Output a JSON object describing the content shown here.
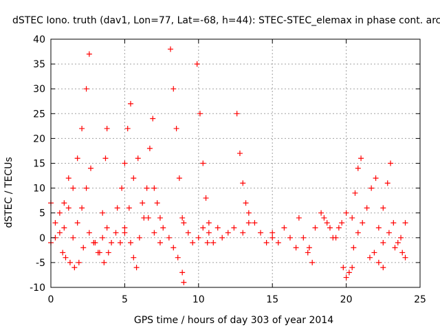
{
  "chart_data": {
    "type": "scatter",
    "title": "dSTEC Iono. truth (dav1, Lon=77, Lat=-68, h=44): STEC-STEC_elemax in phase cont. arc",
    "xlabel": "GPS time / hours of day 303 of year 2014",
    "ylabel": "dSTEC  / TECUs",
    "xlim": [
      0,
      25
    ],
    "ylim": [
      -10,
      40
    ],
    "x_ticks": [
      "0",
      "5",
      "10",
      "15",
      "20",
      "25"
    ],
    "y_ticks": [
      "-10",
      "-5",
      "0",
      "5",
      "10",
      "15",
      "20",
      "25",
      "30",
      "35",
      "40"
    ],
    "grid": true,
    "marker": "+",
    "series_color": "#ff0000",
    "series": [
      {
        "x": [
          0.0,
          0.3,
          0.6,
          0.9,
          1.2,
          1.5,
          1.8,
          2.1,
          2.4,
          2.6
        ],
        "y": [
          7,
          3,
          5,
          2,
          6,
          10,
          16,
          22,
          30,
          37
        ]
      },
      {
        "x": [
          0.0,
          0.3,
          0.6,
          0.9,
          1.2
        ],
        "y": [
          -1,
          0,
          1,
          7,
          12
        ]
      },
      {
        "x": [
          0.8,
          1.0,
          1.3,
          1.6,
          1.9,
          2.2
        ],
        "y": [
          -3,
          -4,
          -5,
          -6,
          -5,
          -2
        ]
      },
      {
        "x": [
          1.5,
          1.8,
          2.1,
          2.4,
          2.7
        ],
        "y": [
          0,
          3,
          6,
          10,
          14
        ]
      },
      {
        "x": [
          2.6,
          2.9,
          3.2,
          3.5,
          3.7,
          3.8
        ],
        "y": [
          1,
          -1,
          -3,
          5,
          16,
          22
        ]
      },
      {
        "x": [
          3.0,
          3.3,
          3.6,
          3.9
        ],
        "y": [
          -1,
          -3,
          -5,
          -3
        ]
      },
      {
        "x": [
          3.5,
          3.8,
          4.1,
          4.4,
          4.7,
          5.0
        ],
        "y": [
          0,
          2,
          -1,
          1,
          -1,
          1
        ]
      },
      {
        "x": [
          4.5,
          4.8,
          5.0,
          5.2,
          5.4
        ],
        "y": [
          6,
          10,
          15,
          22,
          27
        ]
      },
      {
        "x": [
          5.0,
          5.3,
          5.6,
          5.9
        ],
        "y": [
          2,
          6,
          12,
          16
        ]
      },
      {
        "x": [
          5.4,
          5.6,
          5.8
        ],
        "y": [
          -1,
          -4,
          -6
        ]
      },
      {
        "x": [
          6.0,
          6.3,
          6.5,
          6.7,
          6.9
        ],
        "y": [
          0,
          4,
          10,
          18,
          24
        ]
      },
      {
        "x": [
          6.2,
          6.6,
          7.0,
          7.4
        ],
        "y": [
          7,
          4,
          1,
          -1
        ]
      },
      {
        "x": [
          7.0,
          7.2,
          7.4,
          7.6
        ],
        "y": [
          10,
          7,
          4,
          2
        ]
      },
      {
        "x": [
          8.1,
          8.3,
          8.5,
          8.7,
          8.9
        ],
        "y": [
          38,
          30,
          22,
          12,
          4
        ]
      },
      {
        "x": [
          8.0,
          8.3,
          8.6,
          8.9,
          9.0
        ],
        "y": [
          0,
          -2,
          -4,
          -7,
          -9
        ]
      },
      {
        "x": [
          9.0,
          9.3,
          9.6,
          10.0,
          10.3,
          10.6
        ],
        "y": [
          3,
          1,
          -1,
          0,
          2,
          -1
        ]
      },
      {
        "x": [
          9.9,
          10.1,
          10.3,
          10.5,
          10.7
        ],
        "y": [
          35,
          25,
          15,
          8,
          3
        ]
      },
      {
        "x": [
          10.7,
          11.0,
          11.3,
          11.6,
          12.0,
          12.4
        ],
        "y": [
          1,
          -1,
          2,
          0,
          1,
          2
        ]
      },
      {
        "x": [
          12.6,
          12.8,
          13.0,
          13.2,
          13.4
        ],
        "y": [
          25,
          17,
          11,
          7,
          3
        ]
      },
      {
        "x": [
          13.0,
          13.4,
          13.8,
          14.2,
          14.6,
          15.0
        ],
        "y": [
          1,
          5,
          3,
          1,
          -1,
          0
        ]
      },
      {
        "x": [
          15.0,
          15.4,
          15.8,
          16.2,
          16.6
        ],
        "y": [
          1,
          -1,
          2,
          0,
          -2
        ]
      },
      {
        "x": [
          16.8,
          17.1,
          17.4,
          17.7
        ],
        "y": [
          4,
          0,
          -3,
          -5
        ]
      },
      {
        "x": [
          17.5,
          17.9,
          18.3,
          18.7,
          19.1,
          19.5
        ],
        "y": [
          -2,
          2,
          5,
          3,
          0,
          2
        ]
      },
      {
        "x": [
          18.5,
          18.9,
          19.3,
          19.7,
          20.0
        ],
        "y": [
          4,
          2,
          0,
          3,
          5
        ]
      },
      {
        "x": [
          19.8,
          20.0,
          20.2,
          20.4
        ],
        "y": [
          -6,
          -8,
          -7,
          -6
        ]
      },
      {
        "x": [
          20.4,
          20.6,
          20.8,
          21.0
        ],
        "y": [
          4,
          9,
          14,
          16
        ]
      },
      {
        "x": [
          20.5,
          20.8,
          21.1,
          21.4,
          21.7,
          22.0
        ],
        "y": [
          -2,
          1,
          3,
          6,
          10,
          12
        ]
      },
      {
        "x": [
          21.6,
          21.9,
          22.2,
          22.5
        ],
        "y": [
          -4,
          -3,
          -5,
          -6
        ]
      },
      {
        "x": [
          22.2,
          22.5,
          22.8,
          23.0
        ],
        "y": [
          2,
          6,
          11,
          15
        ]
      },
      {
        "x": [
          22.5,
          22.9,
          23.3,
          23.7,
          24.0
        ],
        "y": [
          -1,
          1,
          -2,
          0,
          3
        ]
      },
      {
        "x": [
          23.2,
          23.5,
          23.8,
          24.0
        ],
        "y": [
          3,
          -1,
          -3,
          -4
        ]
      }
    ]
  }
}
